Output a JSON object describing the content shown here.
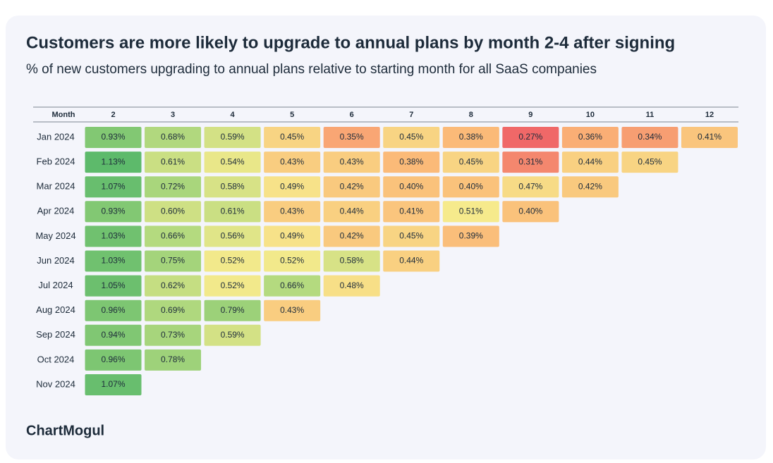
{
  "chart_data": {
    "type": "heatmap",
    "title": "Customers are more likely to upgrade to annual plans by month 2-4 after signing",
    "subtitle": "% of new customers upgrading to annual plans relative to starting month for all SaaS companies",
    "xlabel": "Month",
    "x": [
      2,
      3,
      4,
      5,
      6,
      7,
      8,
      9,
      10,
      11,
      12
    ],
    "categories": [
      "Jan 2024",
      "Feb 2024",
      "Mar 2024",
      "Apr 2024",
      "May 2024",
      "Jun 2024",
      "Jul 2024",
      "Aug 2024",
      "Sep 2024",
      "Oct 2024",
      "Nov 2024"
    ],
    "values": [
      [
        0.93,
        0.68,
        0.59,
        0.45,
        0.35,
        0.45,
        0.38,
        0.27,
        0.36,
        0.34,
        0.41
      ],
      [
        1.13,
        0.61,
        0.54,
        0.43,
        0.43,
        0.38,
        0.45,
        0.31,
        0.44,
        0.45,
        null
      ],
      [
        1.07,
        0.72,
        0.58,
        0.49,
        0.42,
        0.4,
        0.4,
        0.47,
        0.42,
        null,
        null
      ],
      [
        0.93,
        0.6,
        0.61,
        0.43,
        0.44,
        0.41,
        0.51,
        0.4,
        null,
        null,
        null
      ],
      [
        1.03,
        0.66,
        0.56,
        0.49,
        0.42,
        0.45,
        0.39,
        null,
        null,
        null,
        null
      ],
      [
        1.03,
        0.75,
        0.52,
        0.52,
        0.58,
        0.44,
        null,
        null,
        null,
        null,
        null
      ],
      [
        1.05,
        0.62,
        0.52,
        0.66,
        0.48,
        null,
        null,
        null,
        null,
        null,
        null
      ],
      [
        0.96,
        0.69,
        0.79,
        0.43,
        null,
        null,
        null,
        null,
        null,
        null,
        null
      ],
      [
        0.94,
        0.73,
        0.59,
        null,
        null,
        null,
        null,
        null,
        null,
        null,
        null
      ],
      [
        0.96,
        0.78,
        null,
        null,
        null,
        null,
        null,
        null,
        null,
        null,
        null
      ],
      [
        1.07,
        null,
        null,
        null,
        null,
        null,
        null,
        null,
        null,
        null,
        null
      ]
    ],
    "value_labels": [
      [
        "0.93%",
        "0.68%",
        "0.59%",
        "0.45%",
        "0.35%",
        "0.45%",
        "0.38%",
        "0.27%",
        "0.36%",
        "0.34%",
        "0.41%"
      ],
      [
        "1.13%",
        "0.61%",
        "0.54%",
        "0.43%",
        "0.43%",
        "0.38%",
        "0.45%",
        "0.31%",
        "0.44%",
        "0.45%",
        null
      ],
      [
        "1.07%",
        "0.72%",
        "0.58%",
        "0.49%",
        "0.42%",
        "0.40%",
        "0.40%",
        "0.47%",
        "0.42%",
        null,
        null
      ],
      [
        "0.93%",
        "0.60%",
        "0.61%",
        "0.43%",
        "0.44%",
        "0.41%",
        "0.51%",
        "0.40%",
        null,
        null,
        null
      ],
      [
        "1.03%",
        "0.66%",
        "0.56%",
        "0.49%",
        "0.42%",
        "0.45%",
        "0.39%",
        null,
        null,
        null,
        null
      ],
      [
        "1.03%",
        "0.75%",
        "0.52%",
        "0.52%",
        "0.58%",
        "0.44%",
        null,
        null,
        null,
        null,
        null
      ],
      [
        "1.05%",
        "0.62%",
        "0.52%",
        "0.66%",
        "0.48%",
        null,
        null,
        null,
        null,
        null,
        null
      ],
      [
        "0.96%",
        "0.69%",
        "0.79%",
        "0.43%",
        null,
        null,
        null,
        null,
        null,
        null,
        null
      ],
      [
        "0.94%",
        "0.73%",
        "0.59%",
        null,
        null,
        null,
        null,
        null,
        null,
        null,
        null
      ],
      [
        "0.96%",
        "0.78%",
        null,
        null,
        null,
        null,
        null,
        null,
        null,
        null,
        null
      ],
      [
        "1.07%",
        null,
        null,
        null,
        null,
        null,
        null,
        null,
        null,
        null,
        null
      ]
    ],
    "colors": [
      "#f06868",
      "#fbb877",
      "#f6ea8c",
      "#b5da7f",
      "#5dba6b"
    ]
  },
  "logo": "ChartMogul"
}
